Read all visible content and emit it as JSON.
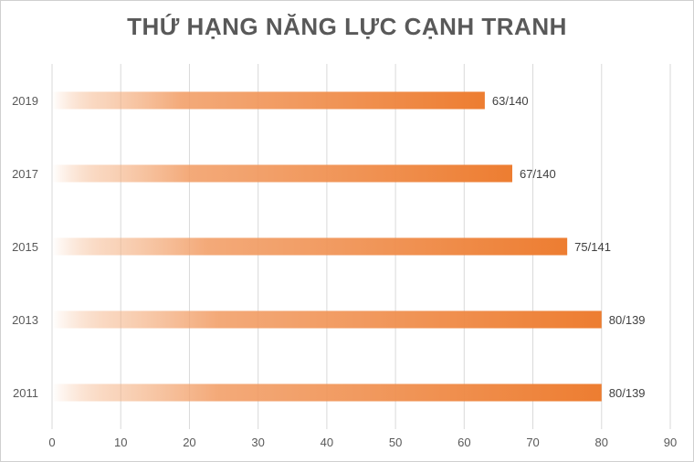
{
  "chart_data": {
    "type": "bar",
    "orientation": "horizontal",
    "title": "THỨ HẠNG NĂNG LỰC CẠNH TRANH",
    "categories": [
      "2019",
      "2017",
      "2015",
      "2013",
      "2011"
    ],
    "values": [
      63,
      67,
      75,
      80,
      80
    ],
    "data_labels": [
      "63/140",
      "67/140",
      "75/141",
      "80/139",
      "80/139"
    ],
    "xlim": [
      0,
      90
    ],
    "xticks": [
      "0",
      "10",
      "20",
      "30",
      "40",
      "50",
      "60",
      "70",
      "80",
      "90"
    ],
    "grid": "vertical",
    "bar_color": "#ED7D31"
  }
}
